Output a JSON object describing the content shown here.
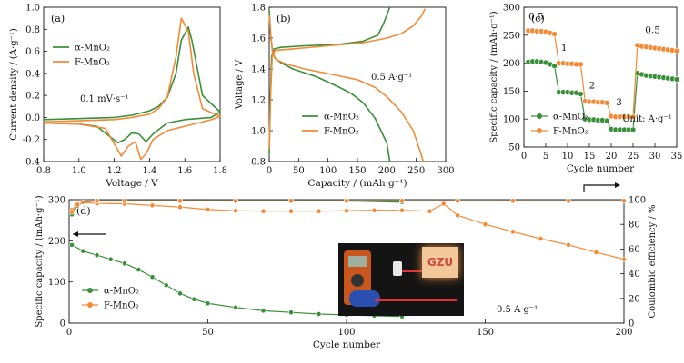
{
  "colors": {
    "alpha": "#3a8f3a",
    "f": "#f28a36",
    "axis": "#111111"
  },
  "chart_data": [
    {
      "id": "a",
      "type": "line",
      "panel_label": "(a)",
      "xlabel": "Voltage / V",
      "ylabel": "Current density / (A·g⁻¹)",
      "xlim": [
        0.8,
        1.8
      ],
      "ylim": [
        -0.4,
        1.0
      ],
      "xticks": [
        "0.8",
        "1.0",
        "1.2",
        "1.4",
        "1.6",
        "1.8"
      ],
      "yticks": [
        "-0.4",
        "-0.2",
        "0.0",
        "0.2",
        "0.4",
        "0.6",
        "0.8",
        "1.0"
      ],
      "annotation": "0.1 mV·s⁻¹",
      "legend": [
        "α-MnO₂",
        "F-MnO₂"
      ],
      "series": [
        {
          "name": "α-MnO₂",
          "x": [
            0.8,
            1.0,
            1.2,
            1.3,
            1.4,
            1.45,
            1.5,
            1.55,
            1.58,
            1.62,
            1.64,
            1.7,
            1.8,
            1.75,
            1.6,
            1.5,
            1.42,
            1.38,
            1.34,
            1.3,
            1.26,
            1.22,
            1.1,
            1.0,
            0.8
          ],
          "y": [
            -0.02,
            -0.01,
            0.0,
            0.02,
            0.06,
            0.1,
            0.18,
            0.4,
            0.7,
            0.82,
            0.7,
            0.2,
            0.05,
            0.0,
            -0.02,
            -0.05,
            -0.15,
            -0.22,
            -0.15,
            -0.14,
            -0.2,
            -0.23,
            -0.08,
            -0.06,
            -0.05
          ]
        },
        {
          "name": "F-MnO₂",
          "x": [
            0.8,
            1.0,
            1.2,
            1.3,
            1.4,
            1.45,
            1.5,
            1.55,
            1.58,
            1.62,
            1.65,
            1.7,
            1.8,
            1.75,
            1.6,
            1.5,
            1.42,
            1.38,
            1.35,
            1.32,
            1.28,
            1.24,
            1.15,
            1.0,
            0.8
          ],
          "y": [
            -0.04,
            -0.03,
            -0.02,
            0.0,
            0.03,
            0.08,
            0.18,
            0.55,
            0.9,
            0.78,
            0.4,
            0.08,
            0.01,
            -0.02,
            -0.08,
            -0.12,
            -0.2,
            -0.33,
            -0.38,
            -0.22,
            -0.26,
            -0.35,
            -0.1,
            -0.06,
            -0.05
          ]
        }
      ]
    },
    {
      "id": "b",
      "type": "line",
      "panel_label": "(b)",
      "xlabel": "Capacity / (mAh·g⁻¹)",
      "ylabel": "Voltage / V",
      "xlim": [
        0,
        300
      ],
      "ylim": [
        0.8,
        1.8
      ],
      "xticks": [
        "0",
        "50",
        "100",
        "150",
        "200",
        "250",
        "300"
      ],
      "yticks": [
        "0.8",
        "1.0",
        "1.2",
        "1.4",
        "1.6",
        "1.8"
      ],
      "annotation": "0.5 A·g⁻¹",
      "legend": [
        "α-MnO₂",
        "F-MnO₂"
      ],
      "series": [
        {
          "name": "α-MnO₂ discharge",
          "x": [
            0,
            3,
            6,
            10,
            20,
            40,
            80,
            120,
            140,
            160,
            180,
            200,
            205
          ],
          "y": [
            1.78,
            1.6,
            1.5,
            1.47,
            1.44,
            1.4,
            1.35,
            1.28,
            1.24,
            1.18,
            1.08,
            0.92,
            0.8
          ]
        },
        {
          "name": "α-MnO₂ charge",
          "x": [
            0,
            2,
            4,
            8,
            20,
            60,
            120,
            160,
            185,
            195,
            205
          ],
          "y": [
            0.85,
            1.2,
            1.48,
            1.53,
            1.54,
            1.55,
            1.56,
            1.58,
            1.62,
            1.7,
            1.8
          ]
        },
        {
          "name": "F-MnO₂ discharge",
          "x": [
            0,
            3,
            6,
            12,
            30,
            60,
            100,
            150,
            180,
            200,
            225,
            245,
            258,
            262
          ],
          "y": [
            1.75,
            1.6,
            1.5,
            1.46,
            1.43,
            1.4,
            1.37,
            1.33,
            1.28,
            1.22,
            1.12,
            1.0,
            0.85,
            0.8
          ]
        },
        {
          "name": "F-MnO₂ charge",
          "x": [
            0,
            2,
            5,
            10,
            40,
            100,
            160,
            200,
            225,
            245,
            258,
            265
          ],
          "y": [
            0.88,
            1.2,
            1.48,
            1.52,
            1.53,
            1.55,
            1.57,
            1.6,
            1.63,
            1.68,
            1.74,
            1.79
          ]
        }
      ]
    },
    {
      "id": "c",
      "type": "line",
      "panel_label": "(c)",
      "xlabel": "Cycle number",
      "ylabel": "Specific capacity / (mAh·g⁻¹)",
      "xlim": [
        0,
        35
      ],
      "ylim": [
        50,
        300
      ],
      "xticks": [
        "0",
        "5",
        "10",
        "15",
        "20",
        "25",
        "30",
        "35"
      ],
      "yticks": [
        "50",
        "100",
        "150",
        "200",
        "250",
        "300"
      ],
      "rate_labels": [
        "0.5",
        "1",
        "2",
        "3",
        "0.5"
      ],
      "unit_note": "Unit: A·g⁻¹",
      "legend": [
        "α-MnO₂",
        "F-MnO₂"
      ],
      "series": [
        {
          "name": "α-MnO₂",
          "x": [
            1,
            2,
            3,
            4,
            5,
            6,
            7,
            8,
            9,
            10,
            11,
            12,
            13,
            14,
            15,
            16,
            17,
            18,
            19,
            20,
            21,
            22,
            23,
            24,
            25,
            26,
            27,
            28,
            29,
            30,
            31,
            32,
            33,
            34,
            35
          ],
          "y": [
            202,
            203,
            203,
            202,
            201,
            198,
            195,
            148,
            148,
            148,
            147,
            147,
            145,
            100,
            99,
            99,
            98,
            98,
            97,
            82,
            81,
            81,
            81,
            81,
            81,
            182,
            180,
            178,
            177,
            176,
            175,
            174,
            173,
            172,
            171
          ]
        },
        {
          "name": "F-MnO₂",
          "x": [
            1,
            2,
            3,
            4,
            5,
            6,
            7,
            8,
            9,
            10,
            11,
            12,
            13,
            14,
            15,
            16,
            17,
            18,
            19,
            20,
            21,
            22,
            23,
            24,
            25,
            26,
            27,
            28,
            29,
            30,
            31,
            32,
            33,
            34,
            35
          ],
          "y": [
            258,
            258,
            257,
            257,
            256,
            254,
            252,
            200,
            200,
            199,
            199,
            198,
            198,
            132,
            131,
            131,
            130,
            130,
            129,
            105,
            104,
            104,
            104,
            104,
            104,
            232,
            230,
            229,
            228,
            227,
            226,
            225,
            224,
            223,
            222
          ]
        }
      ]
    },
    {
      "id": "d",
      "type": "line",
      "panel_label": "(d)",
      "xlabel": "Cycle number",
      "ylabel": "Specific capacity / (mAh·g⁻¹)",
      "ylabel_right": "Coulombic efficiency / %",
      "xlim": [
        0,
        200
      ],
      "ylim": [
        0,
        300
      ],
      "ylim_right": [
        0,
        100
      ],
      "xticks": [
        "0",
        "50",
        "100",
        "150",
        "200"
      ],
      "yticks": [
        "0",
        "100",
        "200",
        "300"
      ],
      "yticks_right": [
        "0",
        "20",
        "40",
        "60",
        "80",
        "100"
      ],
      "annotation": "0.5 A·g⁻¹",
      "legend": [
        "α-MnO₂",
        "F-MnO₂"
      ],
      "series": [
        {
          "name": "α-MnO₂ capacity",
          "x": [
            1,
            5,
            10,
            15,
            20,
            25,
            30,
            35,
            40,
            45,
            50,
            60,
            70,
            80,
            90,
            100,
            110,
            120
          ],
          "y": [
            190,
            175,
            165,
            155,
            145,
            130,
            112,
            92,
            72,
            58,
            48,
            38,
            30,
            26,
            22,
            20,
            18,
            16
          ]
        },
        {
          "name": "F-MnO₂ capacity",
          "x": [
            1,
            3,
            5,
            10,
            20,
            30,
            40,
            50,
            60,
            70,
            80,
            90,
            100,
            110,
            120,
            130,
            135,
            140,
            150,
            160,
            170,
            180,
            190,
            200
          ],
          "y": [
            275,
            290,
            293,
            291,
            290,
            286,
            282,
            276,
            273,
            272,
            272,
            272,
            273,
            274,
            274,
            272,
            290,
            262,
            240,
            222,
            205,
            190,
            172,
            155
          ]
        },
        {
          "name": "α-MnO₂ CE",
          "x": [
            1,
            3,
            5,
            10,
            20,
            40,
            60,
            80,
            100,
            120
          ],
          "y": [
            88,
            95,
            98,
            99,
            99,
            99,
            99,
            99,
            99,
            98
          ]
        },
        {
          "name": "F-MnO₂ CE",
          "x": [
            1,
            3,
            5,
            10,
            20,
            40,
            60,
            80,
            100,
            120,
            140,
            160,
            180,
            200
          ],
          "y": [
            90,
            96,
            98,
            99,
            99,
            99,
            99,
            99,
            99,
            99,
            99,
            99,
            99,
            99
          ]
        }
      ]
    }
  ],
  "photo_sign_text": "GZU"
}
